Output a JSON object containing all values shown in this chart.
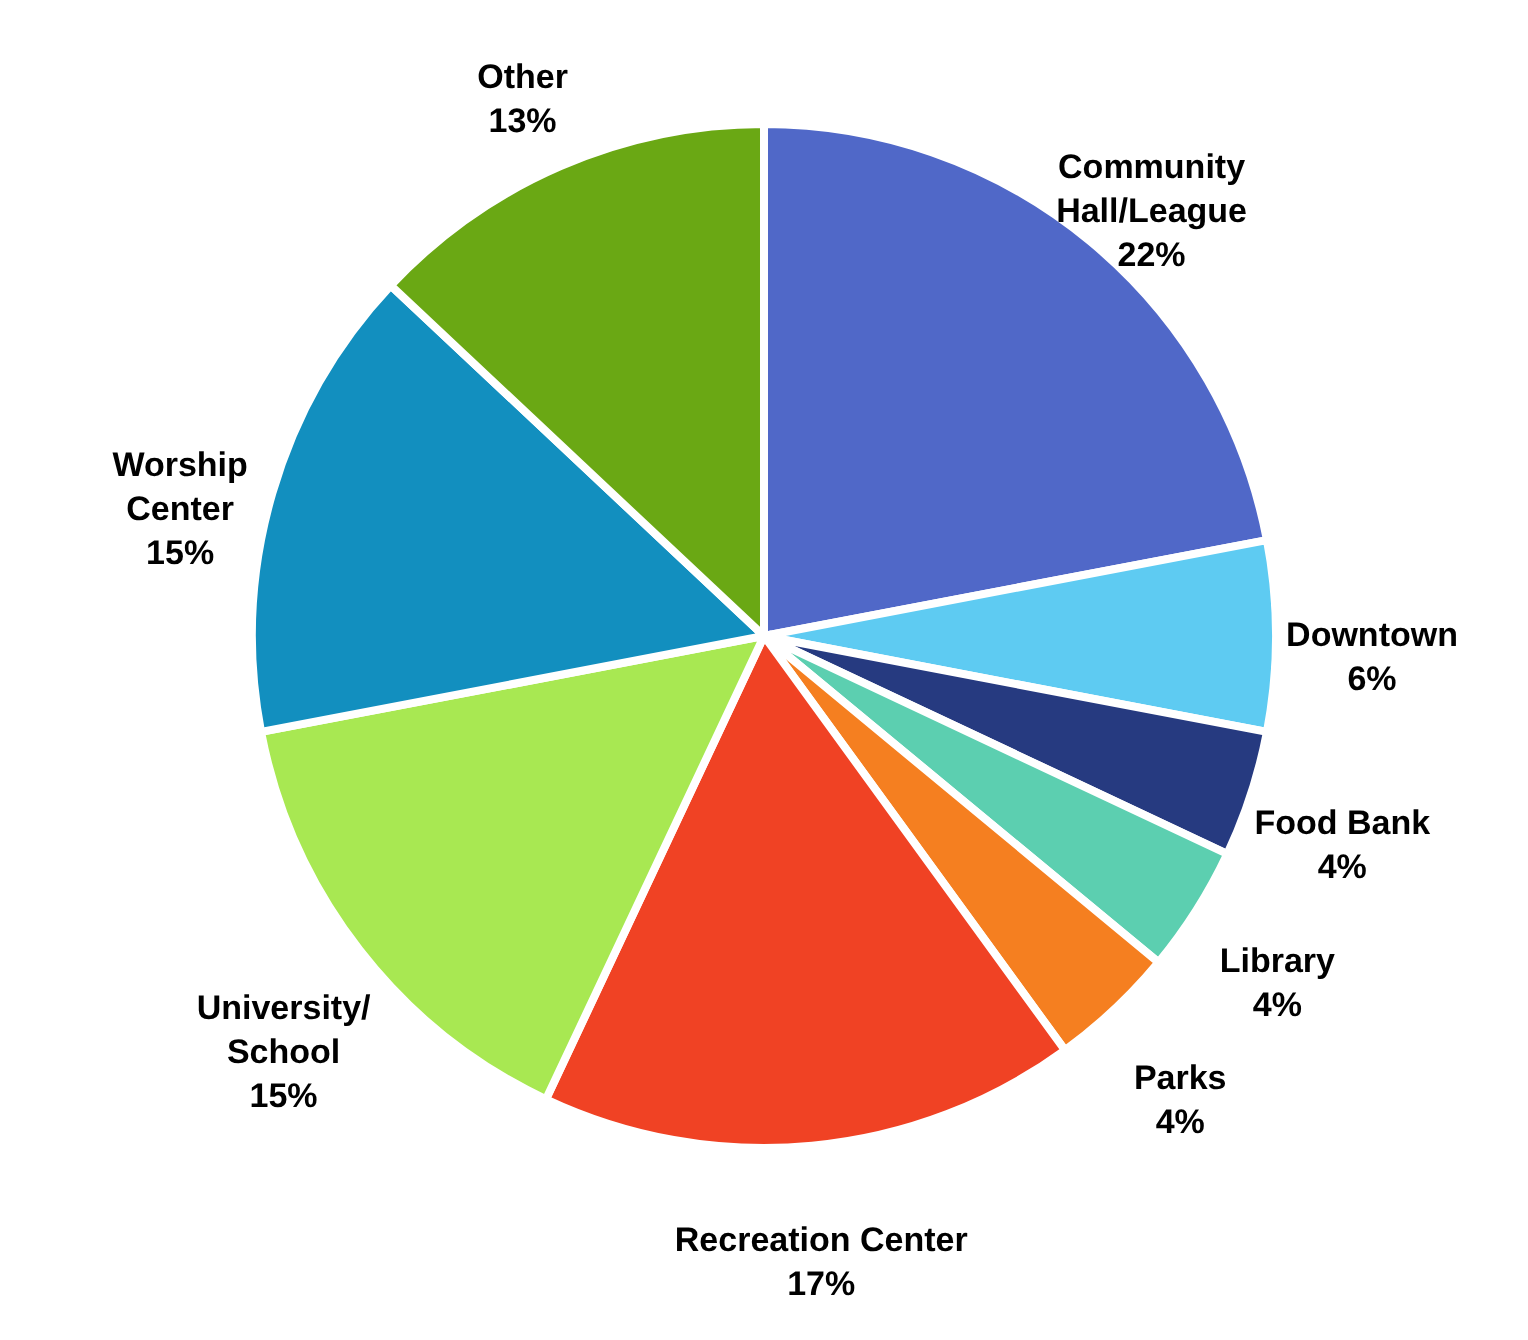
{
  "chart_data": {
    "type": "pie",
    "categories": [
      "Community\nHall/League",
      "Downtown",
      "Food Bank",
      "Library",
      "Parks",
      "Recreation Center",
      "University/\nSchool",
      "Worship\nCenter",
      "Other"
    ],
    "values": [
      22,
      6,
      4,
      4,
      4,
      17,
      15,
      15,
      13
    ],
    "value_labels": [
      "22%",
      "6%",
      "4%",
      "4%",
      "4%",
      "17%",
      "15%",
      "15%",
      "13%"
    ],
    "colors": [
      "#5068c8",
      "#5ecbf2",
      "#263a80",
      "#5ccfb0",
      "#f57f20",
      "#f04224",
      "#a8e852",
      "#128fbf",
      "#6aa814"
    ]
  }
}
